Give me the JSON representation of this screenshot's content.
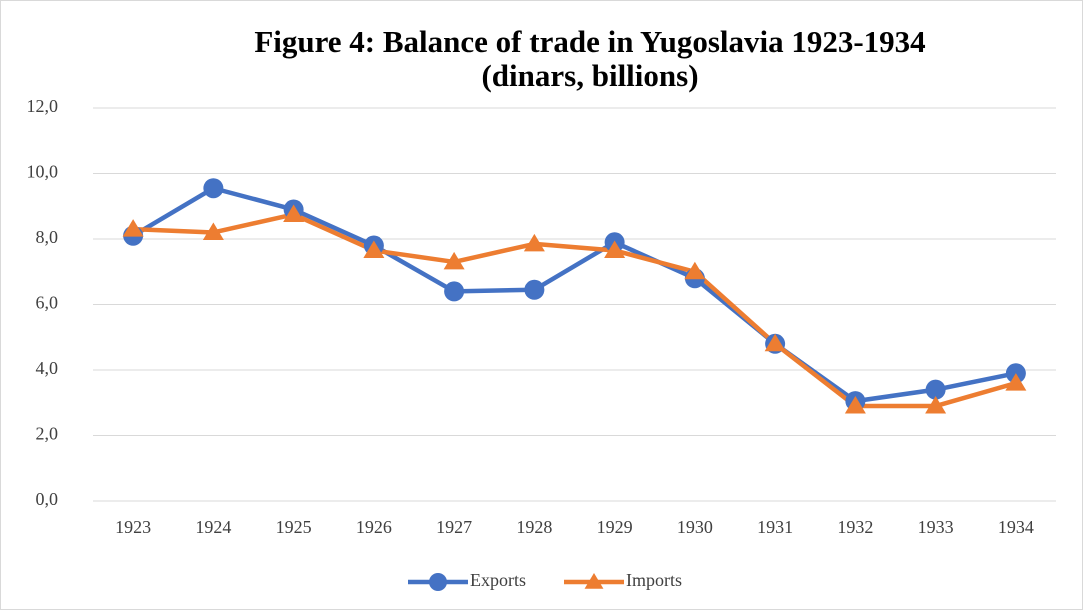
{
  "chart_data": {
    "type": "line",
    "title": "Figure 4: Balance of trade in Yugoslavia 1923-1934",
    "subtitle": "(dinars, billions)",
    "categories": [
      "1923",
      "1924",
      "1925",
      "1926",
      "1927",
      "1928",
      "1929",
      "1930",
      "1931",
      "1932",
      "1933",
      "1934"
    ],
    "series": [
      {
        "name": "Exports",
        "color": "#4472c4",
        "marker": "circle",
        "values": [
          8.1,
          9.55,
          8.9,
          7.8,
          6.4,
          6.45,
          7.9,
          6.8,
          4.8,
          3.05,
          3.4,
          3.9
        ]
      },
      {
        "name": "Imports",
        "color": "#ed7d31",
        "marker": "triangle",
        "values": [
          8.3,
          8.2,
          8.75,
          7.65,
          7.3,
          7.85,
          7.65,
          7.0,
          4.8,
          2.9,
          2.9,
          3.6
        ]
      }
    ],
    "ylim": [
      0,
      12
    ],
    "yticks": [
      {
        "value": 0,
        "label": "0,0"
      },
      {
        "value": 2,
        "label": "2,0"
      },
      {
        "value": 4,
        "label": "4,0"
      },
      {
        "value": 6,
        "label": "6,0"
      },
      {
        "value": 8,
        "label": "8,0"
      },
      {
        "value": 10,
        "label": "10,0"
      },
      {
        "value": 12,
        "label": "12,0"
      }
    ],
    "grid": true,
    "legend": "bottom"
  }
}
